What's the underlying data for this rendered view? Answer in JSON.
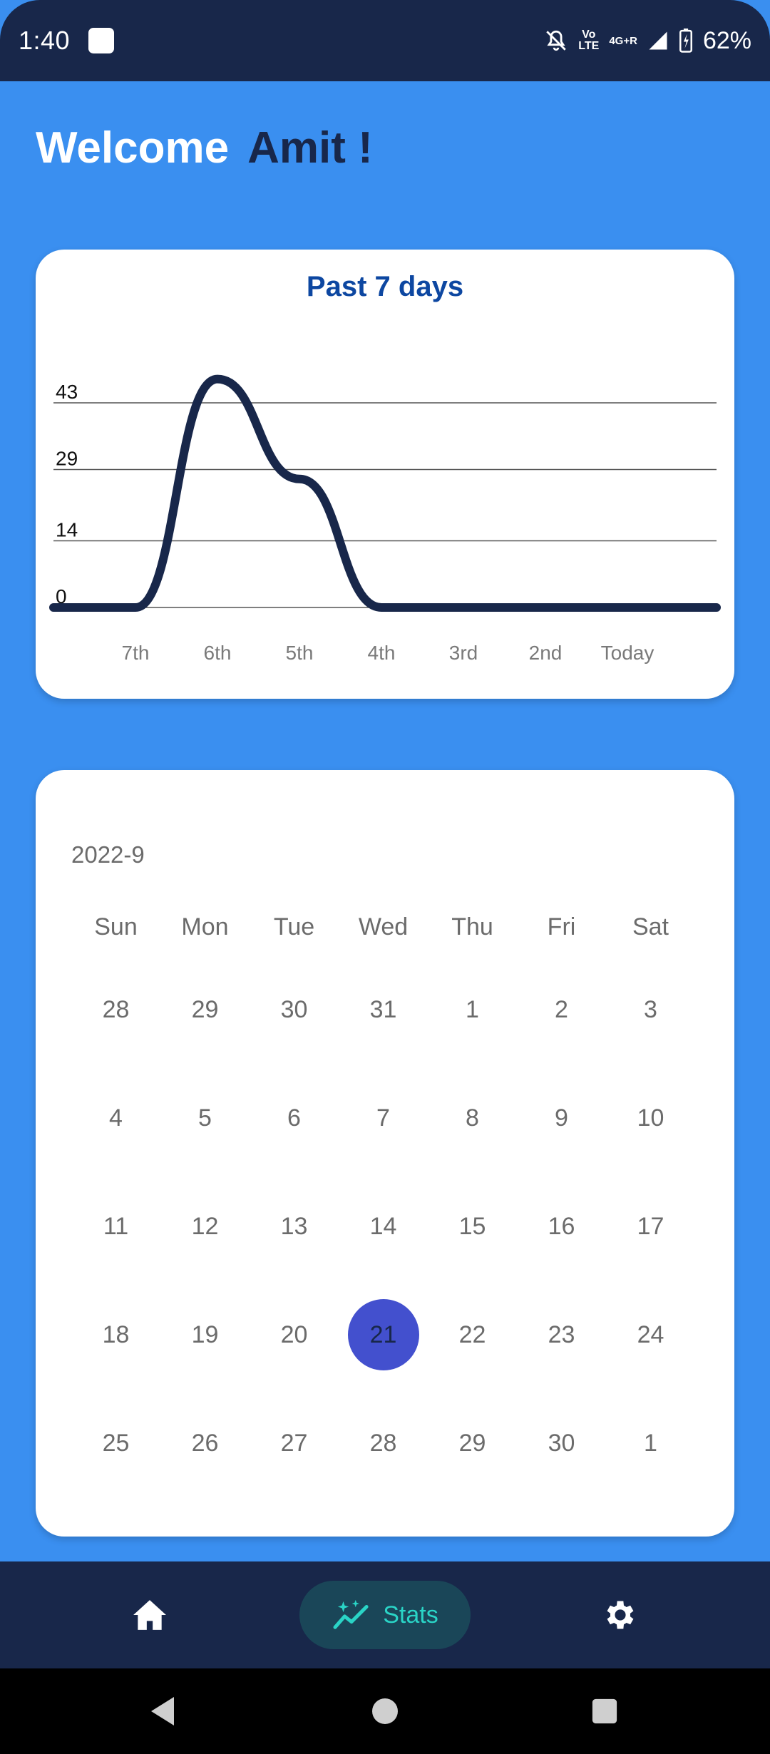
{
  "status_bar": {
    "time": "1:40",
    "network_top": "Vo",
    "network_bottom": "LTE",
    "network_type": "4G+R",
    "battery": "62%"
  },
  "header": {
    "welcome": "Welcome",
    "user_name": "Amit !"
  },
  "chart_card": {
    "title": "Past 7 days"
  },
  "chart_data": {
    "type": "line",
    "title": "Past 7 days",
    "categories": [
      "7th",
      "6th",
      "5th",
      "4th",
      "3rd",
      "2nd",
      "Today"
    ],
    "y_ticks": [
      "43",
      "29",
      "14",
      "0"
    ],
    "y_tick_values": [
      43,
      29,
      14,
      0
    ],
    "values": [
      0,
      48,
      27,
      0,
      0,
      0,
      0
    ],
    "ylim": [
      0,
      43
    ],
    "grid": true,
    "line_color": "#18274A",
    "smooth": true
  },
  "calendar": {
    "month": "2022-9",
    "weekdays": [
      "Sun",
      "Mon",
      "Tue",
      "Wed",
      "Thu",
      "Fri",
      "Sat"
    ],
    "weeks": [
      [
        "28",
        "29",
        "30",
        "31",
        "1",
        "2",
        "3"
      ],
      [
        "4",
        "5",
        "6",
        "7",
        "8",
        "9",
        "10"
      ],
      [
        "11",
        "12",
        "13",
        "14",
        "15",
        "16",
        "17"
      ],
      [
        "18",
        "19",
        "20",
        "21",
        "22",
        "23",
        "24"
      ],
      [
        "25",
        "26",
        "27",
        "28",
        "29",
        "30",
        "1"
      ]
    ],
    "selected_day": "21",
    "selected_color": "#4350CE"
  },
  "bottom_nav": {
    "items": [
      {
        "id": "home",
        "icon": "home-icon",
        "label": ""
      },
      {
        "id": "stats",
        "icon": "stats-sparkle-icon",
        "label": "Stats",
        "active": true
      },
      {
        "id": "settings",
        "icon": "gear-icon",
        "label": ""
      }
    ],
    "stats_label": "Stats"
  },
  "system_nav": {
    "back": "back-icon",
    "home": "home-circle-icon",
    "recents": "recents-icon"
  },
  "colors": {
    "background": "#3A8FF0",
    "bar_dark": "#18274A",
    "title_blue": "#0D47A1",
    "accent_teal": "#2AD4C6"
  }
}
